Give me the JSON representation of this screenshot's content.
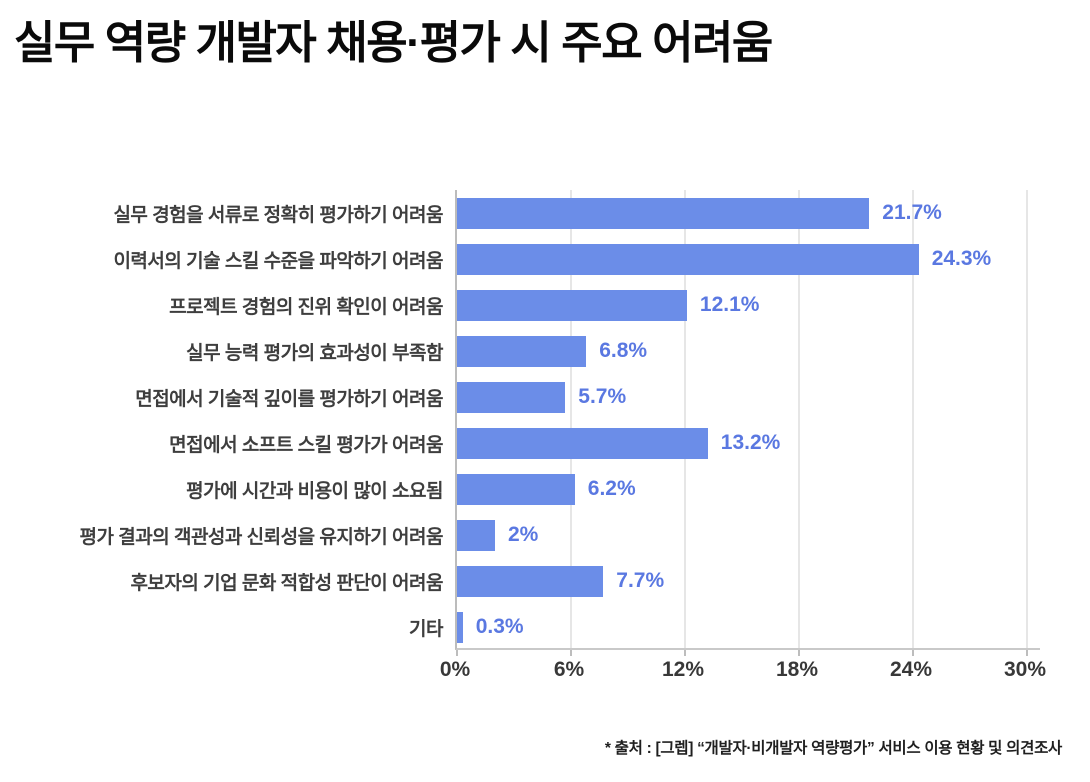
{
  "page": {
    "title": "실무 역량 개발자 채용·평가 시 주요 어려움",
    "source_note": "* 출처 : [그렙] “개발자·비개발자 역량평가” 서비스 이용 현황 및 의견조사"
  },
  "colors": {
    "bar": "#6b8de8",
    "value_label": "#5a78e1",
    "title": "#0a0a0a",
    "category_label": "#3e3e3e",
    "tick_label": "#383838",
    "gridline": "#e6e6e6",
    "axis_line": "#bcbcbc",
    "background": "#ffffff"
  },
  "chart_data": {
    "type": "bar",
    "orientation": "horizontal",
    "title": "실무 역량 개발자 채용·평가 시 주요 어려움",
    "categories": [
      "실무 경험을 서류로 정확히 평가하기 어려움",
      "이력서의 기술 스킬 수준을 파악하기 어려움",
      "프로젝트 경험의 진위 확인이 어려움",
      "실무 능력 평가의 효과성이 부족함",
      "면접에서 기술적 깊이를 평가하기 어려움",
      "면접에서 소프트 스킬 평가가 어려움",
      "평가에 시간과 비용이 많이 소요됨",
      "평가 결과의 객관성과 신뢰성을 유지하기 어려움",
      "후보자의 기업 문화 적합성 판단이 어려움",
      "기타"
    ],
    "values": [
      21.7,
      24.3,
      12.1,
      6.8,
      5.7,
      13.2,
      6.2,
      2,
      7.7,
      0.3
    ],
    "value_labels": [
      "21.7%",
      "24.3%",
      "12.1%",
      "6.8%",
      "5.7%",
      "13.2%",
      "6.2%",
      "2%",
      "7.7%",
      "0.3%"
    ],
    "x_tick_values": [
      0,
      6,
      12,
      18,
      24,
      30
    ],
    "x_tick_labels": [
      "0%",
      "6%",
      "12%",
      "18%",
      "24%",
      "30%"
    ],
    "xlim": [
      0,
      30
    ],
    "grid": true,
    "legend": false,
    "source": "* 출처 : [그렙] “개발자·비개발자 역량평가” 서비스 이용 현황 및 의견조사"
  }
}
